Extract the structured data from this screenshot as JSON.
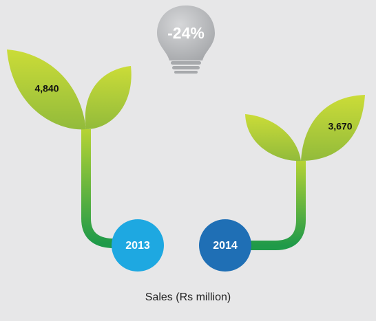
{
  "change": "-24%",
  "items": [
    {
      "year": "2013",
      "value": "4,840"
    },
    {
      "year": "2014",
      "value": "3,670"
    }
  ],
  "caption": "Sales (Rs million)"
}
